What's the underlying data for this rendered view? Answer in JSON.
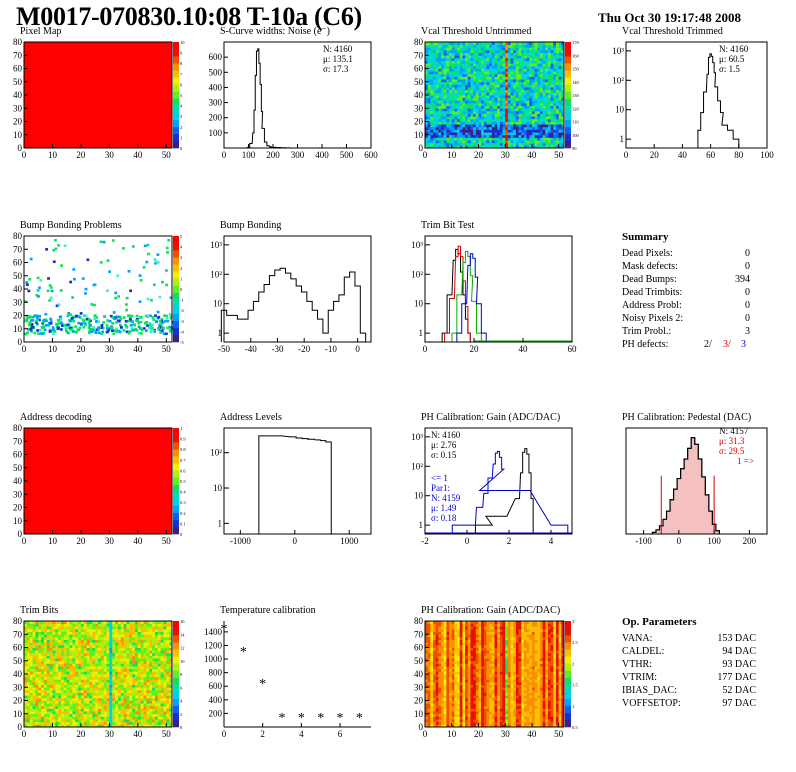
{
  "page": {
    "title": "M0017-070830.10:08 T-10a (C6)",
    "date": "Thu Oct 30 19:17:48 2008",
    "colors": {
      "map_fill": "#ff0000",
      "hist_black": "#000000",
      "hist_red": "#d40000",
      "hist_green": "#00b000",
      "hist_blue": "#0000cc",
      "stats_red": "#d40000",
      "stats_blue": "#0000cc"
    }
  },
  "panels": [
    {
      "id": "pixel-map",
      "title": "Pixel Map",
      "kind": "map",
      "fill": "uniform-red",
      "x_ticks": [
        "0",
        "10",
        "20",
        "30",
        "40",
        "50"
      ],
      "y_ticks": [
        "0",
        "10",
        "20",
        "30",
        "40",
        "50",
        "60",
        "70",
        "80"
      ],
      "palette_ticks": [
        "0",
        "1",
        "2",
        "3",
        "4",
        "5",
        "6",
        "7",
        "8",
        "9",
        "10"
      ]
    },
    {
      "id": "scurve-noise",
      "title": "S-Curve widths: Noise (e⁻)",
      "kind": "hist",
      "x_ticks": [
        "0",
        "100",
        "200",
        "300",
        "400",
        "500",
        "600"
      ],
      "y_ticks": [
        "100",
        "200",
        "300",
        "400",
        "500",
        "600"
      ],
      "stats": [
        {
          "label": "N: 4160"
        },
        {
          "label": "μ: 135.1"
        },
        {
          "label": "σ: 17.3"
        }
      ]
    },
    {
      "id": "vcal-untrimmed",
      "title": "Vcal Threshold Untrimmed",
      "kind": "map",
      "fill": "noisy-threshold",
      "x_ticks": [
        "0",
        "10",
        "20",
        "30",
        "40",
        "50"
      ],
      "y_ticks": [
        "0",
        "10",
        "20",
        "30",
        "40",
        "50",
        "60",
        "70",
        "80"
      ],
      "palette_ticks": [
        "90",
        "100",
        "110",
        "120",
        "130",
        "140",
        "150",
        "160",
        "170"
      ]
    },
    {
      "id": "vcal-trimmed",
      "title": "Vcal Threshold Trimmed",
      "kind": "hist",
      "log": true,
      "x_ticks": [
        "0",
        "20",
        "40",
        "60",
        "80",
        "100"
      ],
      "y_ticks": [
        "1",
        "10",
        "10²",
        "10³"
      ],
      "stats": [
        {
          "label": "N: 4160"
        },
        {
          "label": "μ: 60.5"
        },
        {
          "label": "σ:  1.5"
        }
      ]
    },
    {
      "id": "bump-problems",
      "title": "Bump Bonding Problems",
      "kind": "map",
      "fill": "bump-scatter",
      "x_ticks": [
        "0",
        "10",
        "20",
        "30",
        "40",
        "50"
      ],
      "y_ticks": [
        "0",
        "10",
        "20",
        "30",
        "40",
        "50",
        "60",
        "70",
        "80"
      ],
      "palette_ticks": [
        "-5",
        "-4",
        "-3",
        "-2",
        "-1",
        "0",
        "1",
        "2",
        "3",
        "4",
        "5"
      ]
    },
    {
      "id": "bump-bonding",
      "title": "Bump Bonding",
      "kind": "hist",
      "log": true,
      "x_ticks": [
        "-50",
        "-40",
        "-30",
        "-20",
        "-10",
        "0"
      ],
      "y_ticks": [
        "1",
        "10",
        "10²",
        "10³"
      ]
    },
    {
      "id": "trim-bit-test",
      "title": "Trim Bit Test",
      "kind": "hist",
      "log": true,
      "x_ticks": [
        "0",
        "20",
        "40",
        "60"
      ],
      "y_ticks": [
        "1",
        "10",
        "10²",
        "10³"
      ]
    },
    {
      "id": "summary",
      "title": "Summary",
      "kind": "table",
      "rows": [
        {
          "label": "Dead Pixels:",
          "value": "0"
        },
        {
          "label": "Mask defects:",
          "value": "0"
        },
        {
          "label": "Dead Bumps:",
          "value": "394"
        },
        {
          "label": "Dead Trimbits:",
          "value": "0"
        },
        {
          "label": "Address Probl:",
          "value": "0"
        },
        {
          "label": "Noisy Pixels 2:",
          "value": "0"
        },
        {
          "label": "Trim Probl.:",
          "value": "3"
        }
      ],
      "ph_defects": {
        "label": "PH defects:",
        "v1": "2/",
        "v2": "3/",
        "v3": "3"
      }
    },
    {
      "id": "address-decoding",
      "title": "Address decoding",
      "kind": "map",
      "fill": "uniform-red",
      "x_ticks": [
        "0",
        "10",
        "20",
        "30",
        "40",
        "50"
      ],
      "y_ticks": [
        "0",
        "10",
        "20",
        "30",
        "40",
        "50",
        "60",
        "70",
        "80"
      ],
      "palette_ticks": [
        "0",
        "0.1",
        "0.2",
        "0.3",
        "0.4",
        "0.5",
        "0.6",
        "0.7",
        "0.8",
        "0.9",
        "1"
      ]
    },
    {
      "id": "address-levels",
      "title": "Address Levels",
      "kind": "hist",
      "log": true,
      "x_ticks": [
        "-1000",
        "0",
        "1000"
      ],
      "y_ticks": [
        "1",
        "10",
        "10²"
      ]
    },
    {
      "id": "ph-gain-hist",
      "title": "PH Calibration: Gain (ADC/DAC)",
      "kind": "hist",
      "log": true,
      "x_ticks": [
        "-2",
        "0",
        "2",
        "4"
      ],
      "y_ticks": [
        "1",
        "10",
        "10²",
        "10³"
      ],
      "stats": [
        {
          "label": "N: 4160"
        },
        {
          "label": "μ: 2.76"
        },
        {
          "label": "σ: 0.15"
        }
      ],
      "stats2": [
        {
          "label": "<= 1"
        },
        {
          "label": "Par1:"
        },
        {
          "label": "N: 4159"
        },
        {
          "label": "μ: 1.49"
        },
        {
          "label": "σ: 0.18"
        }
      ]
    },
    {
      "id": "ph-pedestal",
      "title": "PH Calibration: Pedestal (DAC)",
      "kind": "hist",
      "x_ticks": [
        "-100",
        "0",
        "100",
        "200"
      ],
      "y_ticks": [],
      "stats": [
        {
          "label": "N: 4157"
        },
        {
          "label": "μ: 31.3"
        },
        {
          "label": "σ: 29.5"
        },
        {
          "label": "1 =>"
        }
      ]
    },
    {
      "id": "trim-bits",
      "title": "Trim Bits",
      "kind": "map",
      "fill": "trim-noise",
      "x_ticks": [
        "0",
        "10",
        "20",
        "30",
        "40",
        "50"
      ],
      "y_ticks": [
        "0",
        "10",
        "20",
        "30",
        "40",
        "50",
        "60",
        "70",
        "80"
      ],
      "palette_ticks": [
        "0",
        "2",
        "4",
        "6",
        "8",
        "10",
        "12",
        "14",
        "16"
      ]
    },
    {
      "id": "temperature",
      "title": "Temperature calibration",
      "kind": "scatter",
      "x_ticks": [
        "0",
        "2",
        "4",
        "6"
      ],
      "y_ticks": [
        "200",
        "400",
        "600",
        "800",
        "1000",
        "1200",
        "1400"
      ]
    },
    {
      "id": "ph-gain-map",
      "title": "PH Calibration: Gain (ADC/DAC)",
      "kind": "map",
      "fill": "gain-stripes",
      "x_ticks": [
        "0",
        "10",
        "20",
        "30",
        "40",
        "50"
      ],
      "y_ticks": [
        "0",
        "10",
        "20",
        "30",
        "40",
        "50",
        "60",
        "70",
        "80"
      ],
      "palette_ticks": [
        "0.5",
        "1",
        "1.5",
        "2",
        "2.5",
        "3"
      ]
    },
    {
      "id": "op-parameters",
      "title": "Op. Parameters",
      "kind": "table",
      "rows": [
        {
          "label": "VANA:",
          "value": "153 DAC"
        },
        {
          "label": "CALDEL:",
          "value": "94 DAC"
        },
        {
          "label": "VTHR:",
          "value": "93 DAC"
        },
        {
          "label": "VTRIM:",
          "value": "177 DAC"
        },
        {
          "label": "IBIAS_DAC:",
          "value": "52 DAC"
        },
        {
          "label": "VOFFSETOP:",
          "value": "97 DAC"
        }
      ]
    }
  ],
  "chart_data": [
    {
      "type": "heatmap",
      "panel": "pixel-map",
      "title": "Pixel Map",
      "xlim": [
        0,
        52
      ],
      "ylim": [
        0,
        80
      ],
      "zlim": [
        0,
        10
      ],
      "note_value": 10
    },
    {
      "type": "bar",
      "panel": "scurve-noise",
      "title": "S-Curve widths: Noise (e⁻)",
      "xlim": [
        0,
        600
      ],
      "ylim": [
        0,
        700
      ],
      "x": [
        100,
        110,
        120,
        125,
        130,
        135,
        140,
        145,
        150,
        155,
        160,
        170,
        180,
        190,
        200,
        220,
        240,
        260
      ],
      "values": [
        3,
        30,
        100,
        250,
        480,
        640,
        655,
        560,
        420,
        240,
        130,
        40,
        15,
        8,
        5,
        3,
        2,
        1
      ]
    },
    {
      "type": "heatmap",
      "panel": "vcal-untrimmed",
      "title": "Vcal Threshold Untrimmed",
      "xlim": [
        0,
        52
      ],
      "ylim": [
        0,
        80
      ],
      "zlim": [
        90,
        170
      ]
    },
    {
      "type": "bar",
      "panel": "vcal-trimmed",
      "title": "Vcal Threshold Trimmed",
      "log": true,
      "xlim": [
        0,
        100
      ],
      "ylim": [
        0.5,
        2000
      ],
      "x": [
        52,
        54,
        56,
        58,
        59,
        60,
        61,
        62,
        63,
        64,
        66,
        68,
        70,
        74,
        78
      ],
      "values": [
        2,
        8,
        40,
        160,
        600,
        800,
        650,
        400,
        180,
        60,
        20,
        8,
        3,
        2,
        1
      ]
    },
    {
      "type": "heatmap",
      "panel": "bump-problems",
      "title": "Bump Bonding Problems",
      "xlim": [
        0,
        52
      ],
      "ylim": [
        0,
        80
      ],
      "zlim": [
        -5,
        5
      ]
    },
    {
      "type": "bar",
      "panel": "bump-bonding",
      "title": "Bump Bonding",
      "log": true,
      "xlim": [
        -50,
        5
      ],
      "ylim": [
        0.5,
        2000
      ],
      "x": [
        -50,
        -48,
        -46,
        -44,
        -42,
        -40,
        -38,
        -36,
        -34,
        -32,
        -30,
        -28,
        -26,
        -24,
        -22,
        -20,
        -18,
        -16,
        -14,
        -12,
        -10,
        -8,
        -6,
        -4,
        -2,
        0,
        2
      ],
      "values": [
        6,
        4,
        4,
        3,
        3,
        6,
        12,
        25,
        45,
        90,
        140,
        160,
        110,
        70,
        40,
        25,
        12,
        6,
        3,
        1,
        6,
        12,
        20,
        80,
        120,
        40,
        1
      ]
    },
    {
      "type": "bar",
      "panel": "trim-bit-test",
      "title": "Trim Bit Test",
      "log": true,
      "xlim": [
        0,
        60
      ],
      "ylim": [
        0.5,
        2000
      ],
      "series": [
        {
          "color": "#000000",
          "x": [
            8,
            10,
            12,
            13,
            14,
            15,
            16,
            17,
            18
          ],
          "values": [
            1,
            20,
            300,
            700,
            500,
            120,
            20,
            3,
            1
          ]
        },
        {
          "color": "#d40000",
          "x": [
            9,
            11,
            13,
            14,
            15,
            16,
            17,
            18
          ],
          "values": [
            1,
            15,
            400,
            900,
            400,
            60,
            8,
            1
          ]
        },
        {
          "color": "#00b000",
          "x": [
            12,
            14,
            16,
            17,
            18,
            19,
            20,
            22
          ],
          "values": [
            1,
            20,
            250,
            600,
            400,
            90,
            12,
            1
          ]
        },
        {
          "color": "#0000cc",
          "x": [
            14,
            16,
            18,
            19,
            20,
            21,
            22,
            24
          ],
          "values": [
            1,
            10,
            200,
            500,
            350,
            80,
            10,
            1
          ]
        }
      ]
    },
    {
      "type": "heatmap",
      "panel": "address-decoding",
      "title": "Address decoding",
      "xlim": [
        0,
        52
      ],
      "ylim": [
        0,
        80
      ],
      "zlim": [
        0,
        1
      ]
    },
    {
      "type": "bar",
      "panel": "address-levels",
      "title": "Address Levels",
      "log": true,
      "xlim": [
        -1300,
        1400
      ],
      "ylim": [
        0.5,
        500
      ],
      "x": [
        -450,
        -30,
        80,
        190,
        300,
        420,
        520,
        620
      ],
      "values": [
        300,
        280,
        260,
        250,
        240,
        230,
        220,
        200
      ]
    },
    {
      "type": "bar",
      "panel": "ph-gain-hist",
      "title": "PH Calibration: Gain (ADC/DAC)",
      "log": true,
      "xlim": [
        -2,
        5
      ],
      "ylim": [
        0.5,
        2000
      ],
      "series": [
        {
          "color": "#000000",
          "x": [
            0.6,
            1.0,
            1.4,
            2.4,
            2.6,
            2.7,
            2.8,
            2.9,
            3.0,
            3.1
          ],
          "values": [
            1,
            1,
            2,
            8,
            60,
            300,
            400,
            260,
            60,
            8
          ]
        },
        {
          "color": "#0000cc",
          "x": [
            -0.4,
            0.2,
            0.6,
            0.9,
            1.1,
            1.3,
            1.4,
            1.5,
            1.6,
            1.7,
            1.8,
            4.2,
            4.6
          ],
          "values": [
            1,
            1,
            4,
            12,
            40,
            120,
            280,
            320,
            200,
            80,
            15,
            1,
            1
          ]
        }
      ]
    },
    {
      "type": "bar",
      "panel": "ph-pedestal",
      "title": "PH Calibration: Pedestal (DAC)",
      "xlim": [
        -150,
        250
      ],
      "ylim": [
        0,
        130
      ],
      "x": [
        -70,
        -60,
        -50,
        -40,
        -30,
        -20,
        -10,
        0,
        10,
        20,
        30,
        40,
        50,
        60,
        70,
        80,
        90,
        100,
        110
      ],
      "values": [
        2,
        5,
        10,
        18,
        28,
        42,
        55,
        68,
        80,
        92,
        105,
        118,
        110,
        92,
        70,
        48,
        28,
        12,
        4
      ],
      "markers": [
        -50,
        100
      ]
    },
    {
      "type": "heatmap",
      "panel": "trim-bits",
      "title": "Trim Bits",
      "xlim": [
        0,
        52
      ],
      "ylim": [
        0,
        80
      ],
      "zlim": [
        0,
        16
      ]
    },
    {
      "type": "scatter",
      "panel": "temperature",
      "title": "Temperature calibration",
      "xlim": [
        0,
        7.6
      ],
      "ylim": [
        0,
        1560
      ],
      "x": [
        0,
        1,
        2,
        3,
        4,
        5,
        6,
        7
      ],
      "y": [
        1460,
        1120,
        650,
        150,
        150,
        150,
        150,
        150
      ]
    },
    {
      "type": "heatmap",
      "panel": "ph-gain-map",
      "title": "PH Calibration: Gain (ADC/DAC)",
      "xlim": [
        0,
        52
      ],
      "ylim": [
        0,
        80
      ],
      "zlim": [
        0.5,
        3
      ]
    }
  ]
}
